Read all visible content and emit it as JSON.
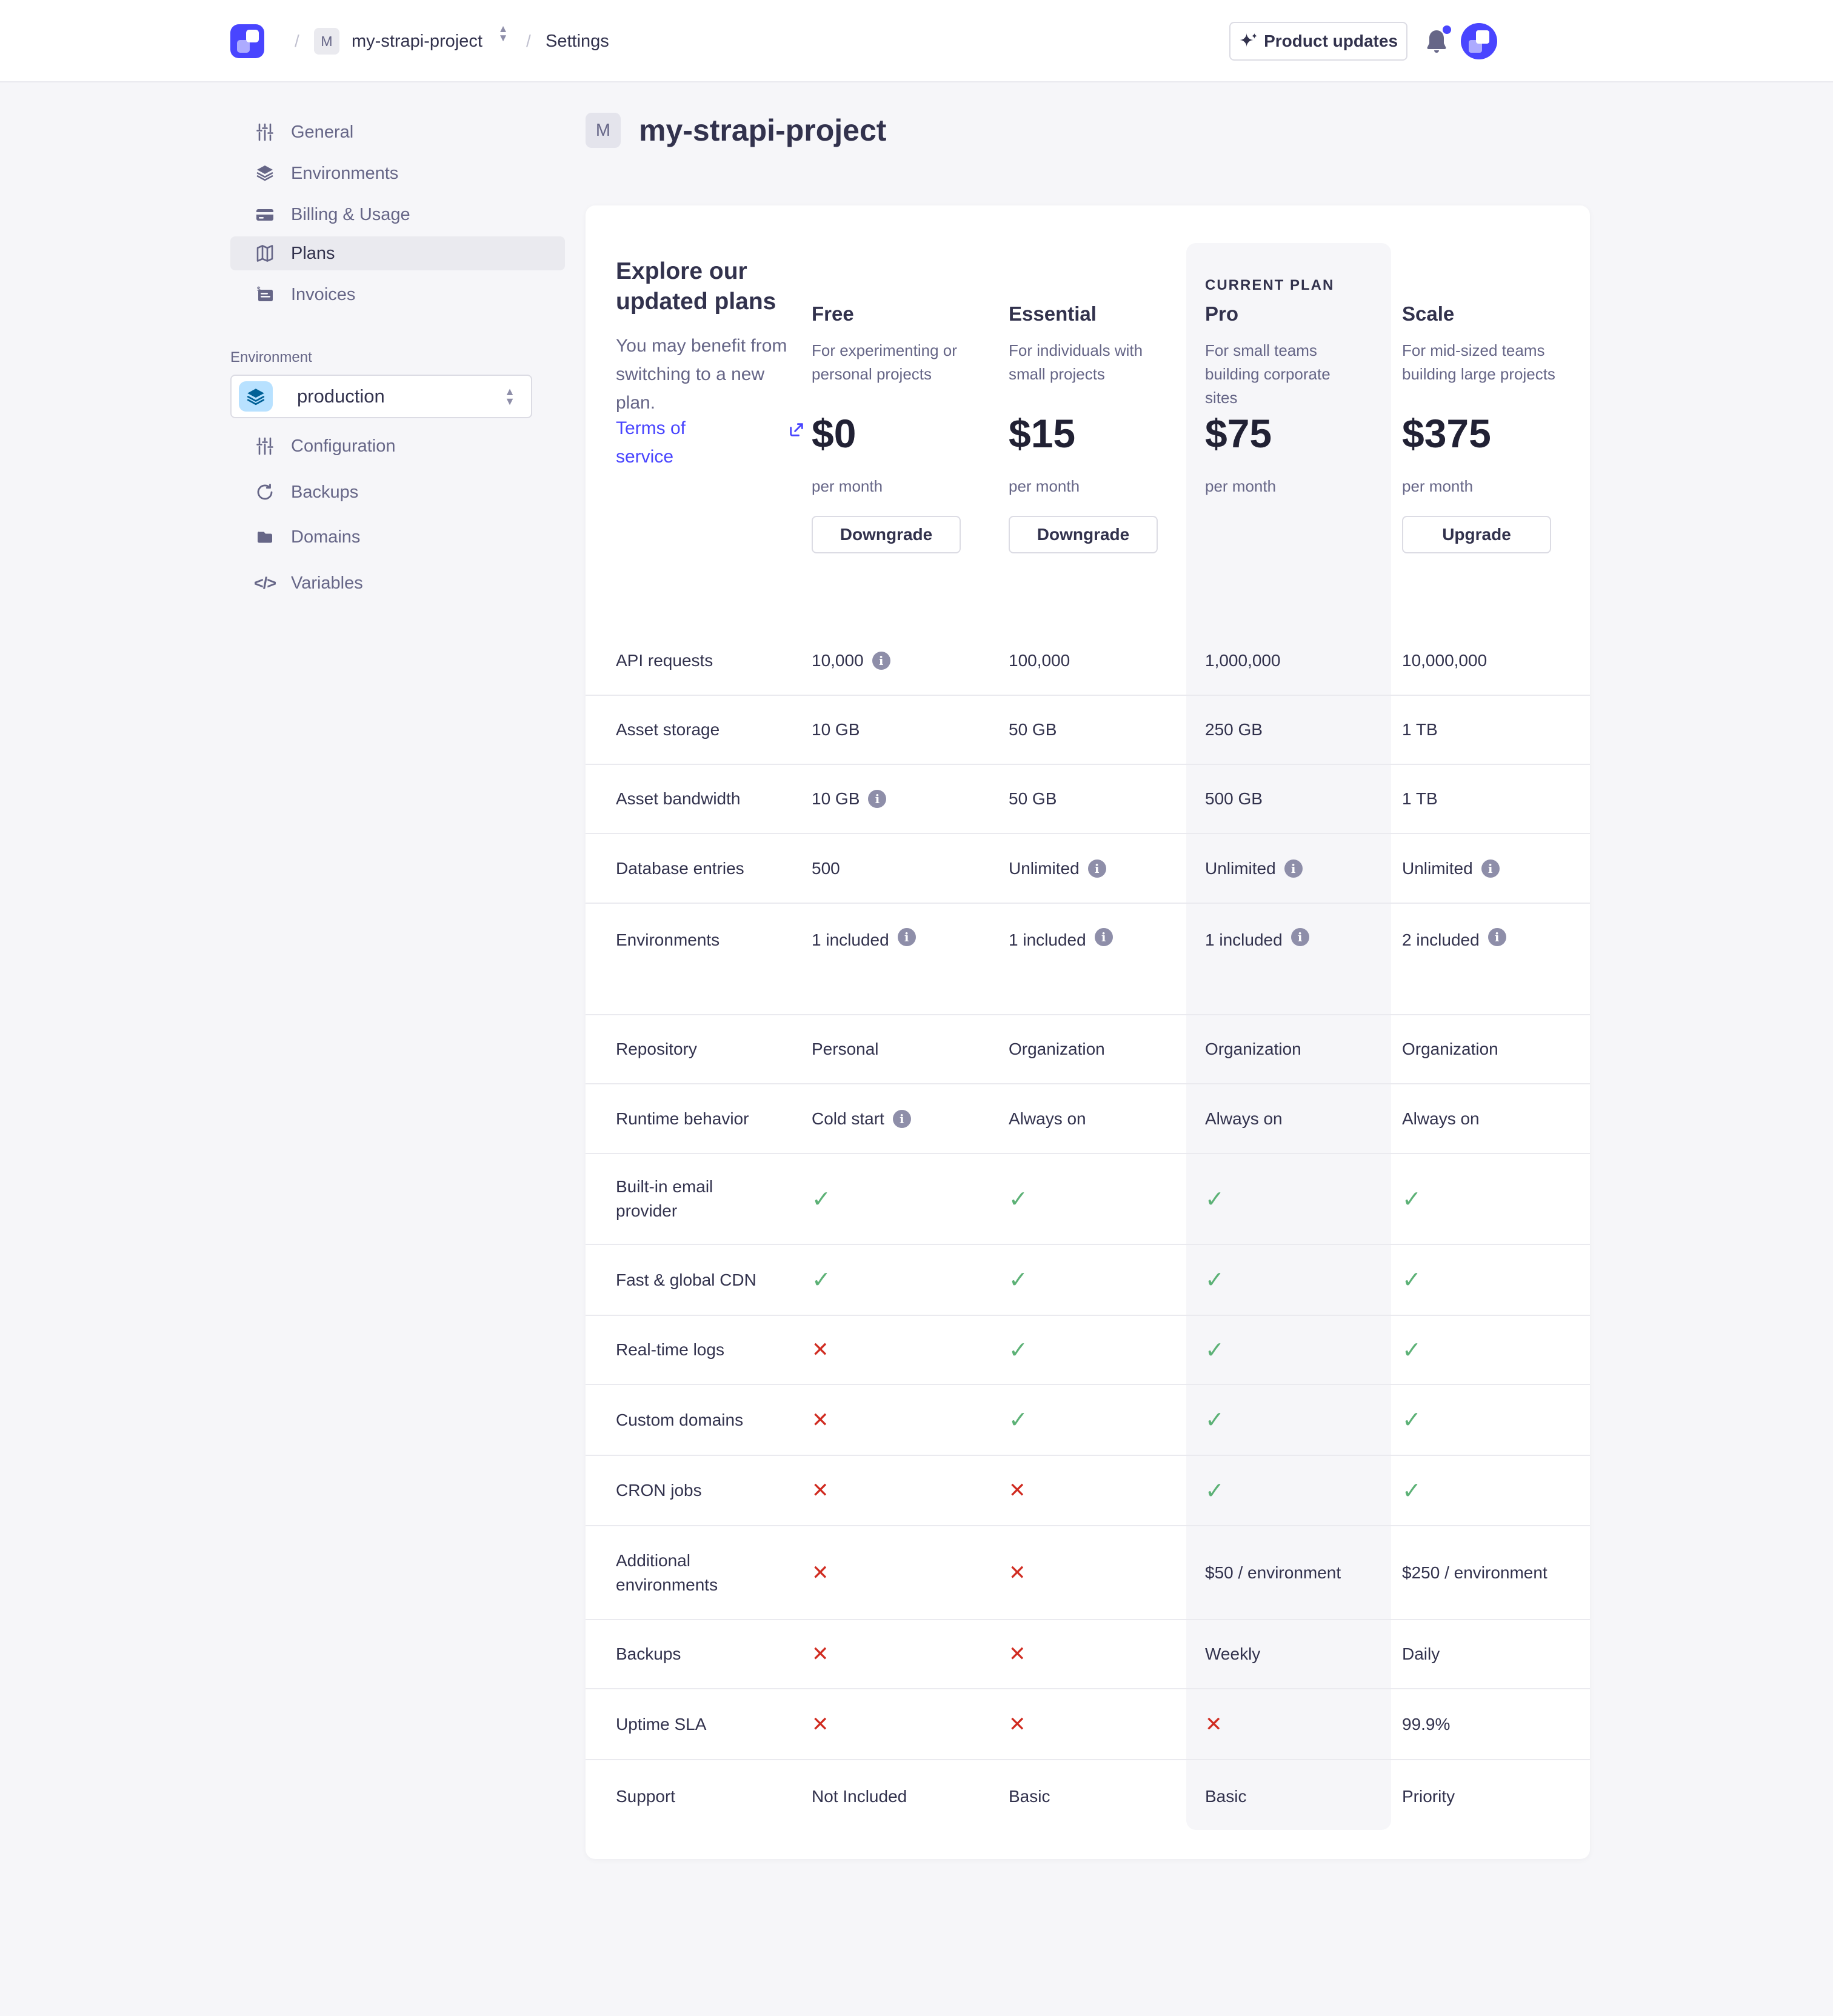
{
  "header": {
    "separator": "/",
    "project_initial": "M",
    "project_name": "my-strapi-project",
    "section": "Settings",
    "product_updates_label": "Product updates"
  },
  "sidebar": {
    "items": [
      {
        "label": "General",
        "icon": "sliders-icon",
        "selected": false
      },
      {
        "label": "Environments",
        "icon": "layers-icon",
        "selected": false
      },
      {
        "label": "Billing & Usage",
        "icon": "credit-card-icon",
        "selected": false
      },
      {
        "label": "Plans",
        "icon": "map-icon",
        "selected": true
      },
      {
        "label": "Invoices",
        "icon": "invoice-icon",
        "selected": false
      }
    ],
    "environment_label": "Environment",
    "environment_selector": {
      "value": "production",
      "icon": "layers-icon"
    },
    "environment_items": [
      {
        "label": "Configuration",
        "icon": "sliders-icon"
      },
      {
        "label": "Backups",
        "icon": "refresh-icon"
      },
      {
        "label": "Domains",
        "icon": "folder-icon"
      },
      {
        "label": "Variables",
        "icon": "code-icon"
      }
    ]
  },
  "page": {
    "title_initial": "M",
    "title": "my-strapi-project"
  },
  "plans": {
    "intro_heading": "Explore our updated plans",
    "intro_body": "You may benefit from switching to a new plan.",
    "terms_link": "Terms of service",
    "current_plan_label": "CURRENT PLAN",
    "columns": [
      {
        "name": "Free",
        "description": "For experimenting or personal projects",
        "price": "$0",
        "period": "per month",
        "action": "Downgrade",
        "current": false
      },
      {
        "name": "Essential",
        "description": "For individuals with small projects",
        "price": "$15",
        "period": "per month",
        "action": "Downgrade",
        "current": false
      },
      {
        "name": "Pro",
        "description": "For small teams building corporate sites",
        "price": "$75",
        "period": "per month",
        "action": null,
        "current": true
      },
      {
        "name": "Scale",
        "description": "For mid-sized teams building large projects",
        "price": "$375",
        "period": "per month",
        "action": "Upgrade",
        "current": false
      }
    ],
    "features": [
      {
        "label": "API requests",
        "values": [
          {
            "type": "text",
            "text": "10,000",
            "info": true
          },
          {
            "type": "text",
            "text": "100,000"
          },
          {
            "type": "text",
            "text": "1,000,000"
          },
          {
            "type": "text",
            "text": "10,000,000"
          }
        ]
      },
      {
        "label": "Asset storage",
        "values": [
          {
            "type": "text",
            "text": "10 GB"
          },
          {
            "type": "text",
            "text": "50 GB"
          },
          {
            "type": "text",
            "text": "250 GB"
          },
          {
            "type": "text",
            "text": "1 TB"
          }
        ]
      },
      {
        "label": "Asset bandwidth",
        "values": [
          {
            "type": "text",
            "text": "10 GB",
            "info": true
          },
          {
            "type": "text",
            "text": "50 GB"
          },
          {
            "type": "text",
            "text": "500 GB"
          },
          {
            "type": "text",
            "text": "1 TB"
          }
        ]
      },
      {
        "label": "Database entries",
        "values": [
          {
            "type": "text",
            "text": "500"
          },
          {
            "type": "text",
            "text": "Unlimited",
            "info": true
          },
          {
            "type": "text",
            "text": "Unlimited",
            "info": true
          },
          {
            "type": "text",
            "text": "Unlimited",
            "info": true
          }
        ]
      },
      {
        "label": "Environments",
        "values": [
          {
            "type": "text",
            "text": "1 included",
            "info": true
          },
          {
            "type": "text",
            "text": "1 included",
            "info": true
          },
          {
            "type": "text",
            "text": "1 included",
            "info": true
          },
          {
            "type": "text",
            "text": "2 included",
            "info": true
          }
        ]
      },
      {
        "label": "Repository",
        "values": [
          {
            "type": "text",
            "text": "Personal"
          },
          {
            "type": "text",
            "text": "Organization"
          },
          {
            "type": "text",
            "text": "Organization"
          },
          {
            "type": "text",
            "text": "Organization"
          }
        ]
      },
      {
        "label": "Runtime behavior",
        "values": [
          {
            "type": "text",
            "text": "Cold start",
            "info": true
          },
          {
            "type": "text",
            "text": "Always on"
          },
          {
            "type": "text",
            "text": "Always on"
          },
          {
            "type": "text",
            "text": "Always on"
          }
        ]
      },
      {
        "label": "Built-in email provider",
        "values": [
          {
            "type": "check"
          },
          {
            "type": "check"
          },
          {
            "type": "check"
          },
          {
            "type": "check"
          }
        ]
      },
      {
        "label": "Fast & global CDN",
        "values": [
          {
            "type": "check"
          },
          {
            "type": "check"
          },
          {
            "type": "check"
          },
          {
            "type": "check"
          }
        ]
      },
      {
        "label": "Real-time logs",
        "values": [
          {
            "type": "cross"
          },
          {
            "type": "check"
          },
          {
            "type": "check"
          },
          {
            "type": "check"
          }
        ]
      },
      {
        "label": "Custom domains",
        "values": [
          {
            "type": "cross"
          },
          {
            "type": "check"
          },
          {
            "type": "check"
          },
          {
            "type": "check"
          }
        ]
      },
      {
        "label": "CRON jobs",
        "values": [
          {
            "type": "cross"
          },
          {
            "type": "cross"
          },
          {
            "type": "check"
          },
          {
            "type": "check"
          }
        ]
      },
      {
        "label": "Additional environments",
        "values": [
          {
            "type": "cross"
          },
          {
            "type": "cross"
          },
          {
            "type": "text",
            "text": "$50 / environment"
          },
          {
            "type": "text",
            "text": "$250 / environment"
          }
        ]
      },
      {
        "label": "Backups",
        "values": [
          {
            "type": "cross"
          },
          {
            "type": "cross"
          },
          {
            "type": "text",
            "text": "Weekly"
          },
          {
            "type": "text",
            "text": "Daily"
          }
        ]
      },
      {
        "label": "Uptime SLA",
        "values": [
          {
            "type": "cross"
          },
          {
            "type": "cross"
          },
          {
            "type": "cross"
          },
          {
            "type": "text",
            "text": "99.9%"
          }
        ]
      },
      {
        "label": "Support",
        "values": [
          {
            "type": "text",
            "text": "Not Included"
          },
          {
            "type": "text",
            "text": "Basic"
          },
          {
            "type": "text",
            "text": "Basic"
          },
          {
            "type": "text",
            "text": "Priority"
          }
        ]
      }
    ]
  },
  "colors": {
    "primary": "#4945ff",
    "success": "#5cb176",
    "danger": "#d02b20",
    "background": "#f6f6f9"
  }
}
